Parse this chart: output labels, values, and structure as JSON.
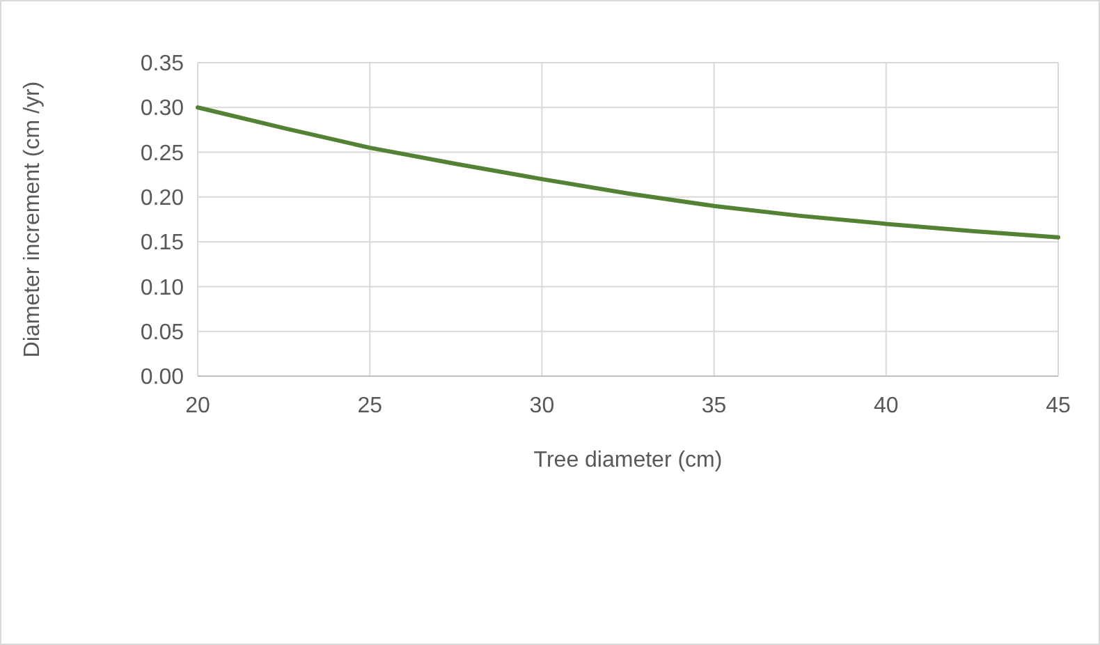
{
  "chart_data": {
    "type": "line",
    "xlabel": "Tree diameter (cm)",
    "ylabel": "Diameter increment (cm /yr)",
    "x": [
      20,
      22.5,
      25,
      27.5,
      30,
      32.5,
      35,
      37.5,
      40,
      42.5,
      45
    ],
    "series": [
      {
        "color": "#548235",
        "values": [
          0.3,
          0.277,
          0.255,
          0.237,
          0.22,
          0.204,
          0.19,
          0.179,
          0.17,
          0.162,
          0.155
        ]
      }
    ],
    "xlim": [
      20,
      45
    ],
    "xticks": [
      20,
      25,
      30,
      35,
      40,
      45
    ],
    "ylim": [
      0,
      0.35
    ],
    "yticks": [
      {
        "value": 0,
        "label": "0.00"
      },
      {
        "value": 0.05,
        "label": "0.05"
      },
      {
        "value": 0.1,
        "label": "0.10"
      },
      {
        "value": 0.15,
        "label": "0.15"
      },
      {
        "value": 0.2,
        "label": "0.20"
      },
      {
        "value": 0.25,
        "label": "0.25"
      },
      {
        "value": 0.3,
        "label": "0.30"
      },
      {
        "value": 0.35,
        "label": "0.35"
      }
    ],
    "grid": true,
    "marker": "none",
    "line_style": "solid"
  }
}
